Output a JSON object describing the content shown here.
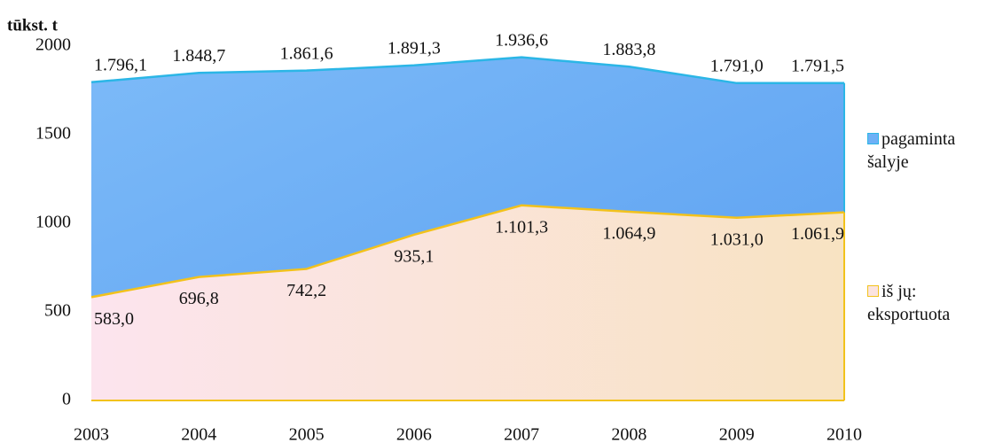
{
  "chart_data": {
    "type": "area",
    "y_label": "tūkst. t",
    "categories": [
      "2003",
      "2004",
      "2005",
      "2006",
      "2007",
      "2008",
      "2009",
      "2010"
    ],
    "series": [
      {
        "name": "pagaminta šalyje",
        "color": "#6eb0f6",
        "line_color": "#2bb6e6",
        "values": [
          1796.1,
          1848.7,
          1861.6,
          1891.3,
          1936.6,
          1883.8,
          1791.0,
          1791.5
        ],
        "value_labels": [
          "1.796,1",
          "1.848,7",
          "1.861,6",
          "1.891,3",
          "1.936,6",
          "1.883,8",
          "1.791,0",
          "1.791,5"
        ]
      },
      {
        "name": "iš jų: eksportuota",
        "color": "#fbe3df",
        "line_color": "#f2c21c",
        "values": [
          583.0,
          696.8,
          742.2,
          935.1,
          1101.3,
          1064.9,
          1031.0,
          1061.9
        ],
        "value_labels": [
          "583,0",
          "696,8",
          "742,2",
          "935,1",
          "1.101,3",
          "1.064,9",
          "1.031,0",
          "1.061,9"
        ]
      }
    ],
    "ylim": [
      0,
      2000
    ],
    "yticks": [
      0,
      500,
      1000,
      1500,
      2000
    ],
    "grid": false,
    "legend": "right"
  }
}
